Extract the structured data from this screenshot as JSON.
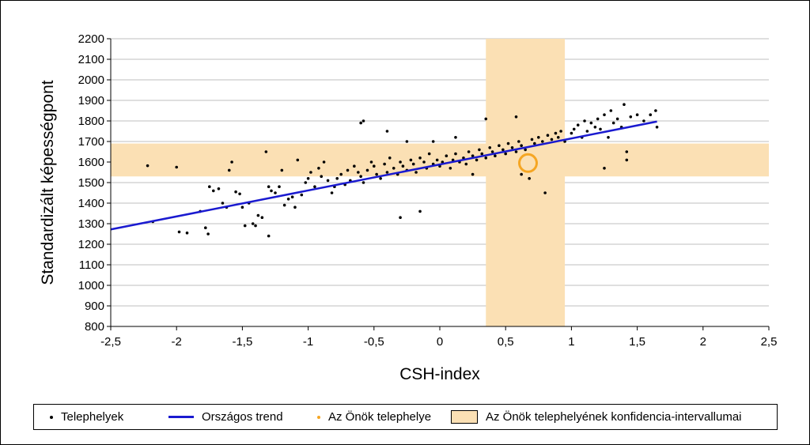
{
  "chart_data": {
    "type": "scatter",
    "xlabel": "CSH-index",
    "ylabel": "Standardizált képességpont",
    "xlim": [
      -2.5,
      2.5
    ],
    "ylim": [
      800,
      2200
    ],
    "x_ticks": [
      "-2,5",
      "-2",
      "-1,5",
      "-1",
      "-0,5",
      "0",
      "0,5",
      "1",
      "1,5",
      "2",
      "2,5"
    ],
    "x_tick_values": [
      -2.5,
      -2,
      -1.5,
      -1,
      -0.5,
      0,
      0.5,
      1,
      1.5,
      2,
      2.5
    ],
    "y_ticks": [
      "800",
      "900",
      "1000",
      "1100",
      "1200",
      "1300",
      "1400",
      "1500",
      "1600",
      "1700",
      "1800",
      "1900",
      "2000",
      "2100",
      "2200"
    ],
    "y_tick_values": [
      800,
      900,
      1000,
      1100,
      1200,
      1300,
      1400,
      1500,
      1600,
      1700,
      1800,
      1900,
      2000,
      2100,
      2200
    ],
    "grid": "horizontal",
    "trend": {
      "name": "Országos trend",
      "x": [
        -2.5,
        1.65
      ],
      "y": [
        1272,
        1797
      ],
      "color": "#1a1ad0"
    },
    "own_site": {
      "name": "Az Önök telephelye",
      "x": 0.67,
      "y": 1595,
      "color": "#f5a623"
    },
    "confidence_interval": {
      "name": "Az Önök telephelyének konfidencia-intervallumai",
      "x_range": [
        0.35,
        0.95
      ],
      "y_range": [
        1530,
        1690
      ],
      "color": "#fbe0b4"
    },
    "series": [
      {
        "name": "Telephelyek",
        "points": [
          [
            -2.22,
            1582
          ],
          [
            -2.18,
            1310
          ],
          [
            -2.0,
            1575
          ],
          [
            -1.98,
            1260
          ],
          [
            -1.92,
            1255
          ],
          [
            -1.82,
            1360
          ],
          [
            -1.78,
            1280
          ],
          [
            -1.76,
            1250
          ],
          [
            -1.75,
            1480
          ],
          [
            -1.72,
            1460
          ],
          [
            -1.68,
            1470
          ],
          [
            -1.65,
            1400
          ],
          [
            -1.62,
            1380
          ],
          [
            -1.6,
            1560
          ],
          [
            -1.58,
            1600
          ],
          [
            -1.55,
            1455
          ],
          [
            -1.52,
            1445
          ],
          [
            -1.5,
            1380
          ],
          [
            -1.48,
            1290
          ],
          [
            -1.45,
            1400
          ],
          [
            -1.42,
            1300
          ],
          [
            -1.4,
            1290
          ],
          [
            -1.38,
            1340
          ],
          [
            -1.35,
            1330
          ],
          [
            -1.32,
            1650
          ],
          [
            -1.3,
            1480
          ],
          [
            -1.28,
            1460
          ],
          [
            -1.25,
            1450
          ],
          [
            -1.22,
            1480
          ],
          [
            -1.2,
            1560
          ],
          [
            -1.18,
            1390
          ],
          [
            -1.15,
            1420
          ],
          [
            -1.12,
            1430
          ],
          [
            -1.1,
            1380
          ],
          [
            -1.08,
            1610
          ],
          [
            -1.05,
            1440
          ],
          [
            -1.02,
            1500
          ],
          [
            -1.0,
            1520
          ],
          [
            -0.98,
            1550
          ],
          [
            -0.95,
            1480
          ],
          [
            -0.92,
            1570
          ],
          [
            -0.9,
            1530
          ],
          [
            -0.88,
            1600
          ],
          [
            -0.85,
            1510
          ],
          [
            -0.82,
            1450
          ],
          [
            -0.8,
            1480
          ],
          [
            -0.78,
            1520
          ],
          [
            -0.75,
            1540
          ],
          [
            -0.72,
            1490
          ],
          [
            -0.7,
            1560
          ],
          [
            -0.68,
            1510
          ],
          [
            -0.65,
            1580
          ],
          [
            -0.62,
            1550
          ],
          [
            -0.6,
            1530
          ],
          [
            -0.58,
            1500
          ],
          [
            -0.55,
            1560
          ],
          [
            -0.52,
            1600
          ],
          [
            -0.5,
            1580
          ],
          [
            -0.48,
            1540
          ],
          [
            -0.45,
            1520
          ],
          [
            -0.42,
            1590
          ],
          [
            -0.4,
            1550
          ],
          [
            -0.38,
            1620
          ],
          [
            -0.35,
            1570
          ],
          [
            -0.32,
            1540
          ],
          [
            -0.3,
            1600
          ],
          [
            -0.28,
            1580
          ],
          [
            -0.25,
            1560
          ],
          [
            -0.22,
            1610
          ],
          [
            -0.2,
            1590
          ],
          [
            -0.18,
            1550
          ],
          [
            -0.15,
            1620
          ],
          [
            -0.12,
            1600
          ],
          [
            -0.1,
            1570
          ],
          [
            -0.08,
            1640
          ],
          [
            -0.05,
            1590
          ],
          [
            -0.02,
            1610
          ],
          [
            0.0,
            1580
          ],
          [
            0.02,
            1600
          ],
          [
            0.05,
            1630
          ],
          [
            0.08,
            1570
          ],
          [
            0.1,
            1610
          ],
          [
            0.12,
            1640
          ],
          [
            0.15,
            1600
          ],
          [
            0.18,
            1620
          ],
          [
            0.2,
            1590
          ],
          [
            0.22,
            1650
          ],
          [
            0.25,
            1630
          ],
          [
            0.28,
            1610
          ],
          [
            0.3,
            1660
          ],
          [
            0.32,
            1640
          ],
          [
            0.35,
            1620
          ],
          [
            0.38,
            1670
          ],
          [
            0.4,
            1650
          ],
          [
            0.42,
            1630
          ],
          [
            0.45,
            1680
          ],
          [
            0.48,
            1660
          ],
          [
            0.5,
            1640
          ],
          [
            0.52,
            1690
          ],
          [
            0.55,
            1670
          ],
          [
            0.58,
            1650
          ],
          [
            0.6,
            1700
          ],
          [
            0.62,
            1680
          ],
          [
            0.65,
            1660
          ],
          [
            0.7,
            1710
          ],
          [
            0.72,
            1690
          ],
          [
            0.75,
            1720
          ],
          [
            0.78,
            1700
          ],
          [
            0.8,
            1450
          ],
          [
            0.82,
            1730
          ],
          [
            0.85,
            1710
          ],
          [
            0.88,
            1740
          ],
          [
            0.9,
            1720
          ],
          [
            0.92,
            1750
          ],
          [
            0.95,
            1700
          ],
          [
            1.0,
            1740
          ],
          [
            1.02,
            1760
          ],
          [
            1.05,
            1780
          ],
          [
            1.08,
            1720
          ],
          [
            1.1,
            1800
          ],
          [
            1.12,
            1750
          ],
          [
            1.15,
            1790
          ],
          [
            1.18,
            1770
          ],
          [
            1.2,
            1810
          ],
          [
            1.22,
            1760
          ],
          [
            1.25,
            1830
          ],
          [
            1.28,
            1720
          ],
          [
            1.3,
            1850
          ],
          [
            1.32,
            1790
          ],
          [
            1.35,
            1810
          ],
          [
            1.38,
            1770
          ],
          [
            1.4,
            1880
          ],
          [
            1.42,
            1610
          ],
          [
            1.45,
            1820
          ],
          [
            1.5,
            1830
          ],
          [
            1.55,
            1800
          ],
          [
            1.6,
            1830
          ],
          [
            1.64,
            1850
          ],
          [
            1.65,
            1770
          ],
          [
            -0.6,
            1790
          ],
          [
            -0.58,
            1800
          ],
          [
            -1.3,
            1240
          ],
          [
            -0.4,
            1750
          ],
          [
            0.35,
            1810
          ],
          [
            0.58,
            1820
          ],
          [
            1.42,
            1650
          ],
          [
            1.25,
            1570
          ],
          [
            -0.3,
            1330
          ],
          [
            -0.15,
            1360
          ],
          [
            0.62,
            1540
          ],
          [
            0.68,
            1520
          ],
          [
            -0.05,
            1700
          ],
          [
            0.12,
            1720
          ],
          [
            -0.25,
            1700
          ],
          [
            0.25,
            1540
          ]
        ]
      }
    ],
    "legend": {
      "placement": "bottom",
      "items": [
        "Telephelyek",
        "Országos trend",
        "Az Önök telephelye",
        "Az Önök telephelyének konfidencia-intervallumai"
      ]
    }
  }
}
